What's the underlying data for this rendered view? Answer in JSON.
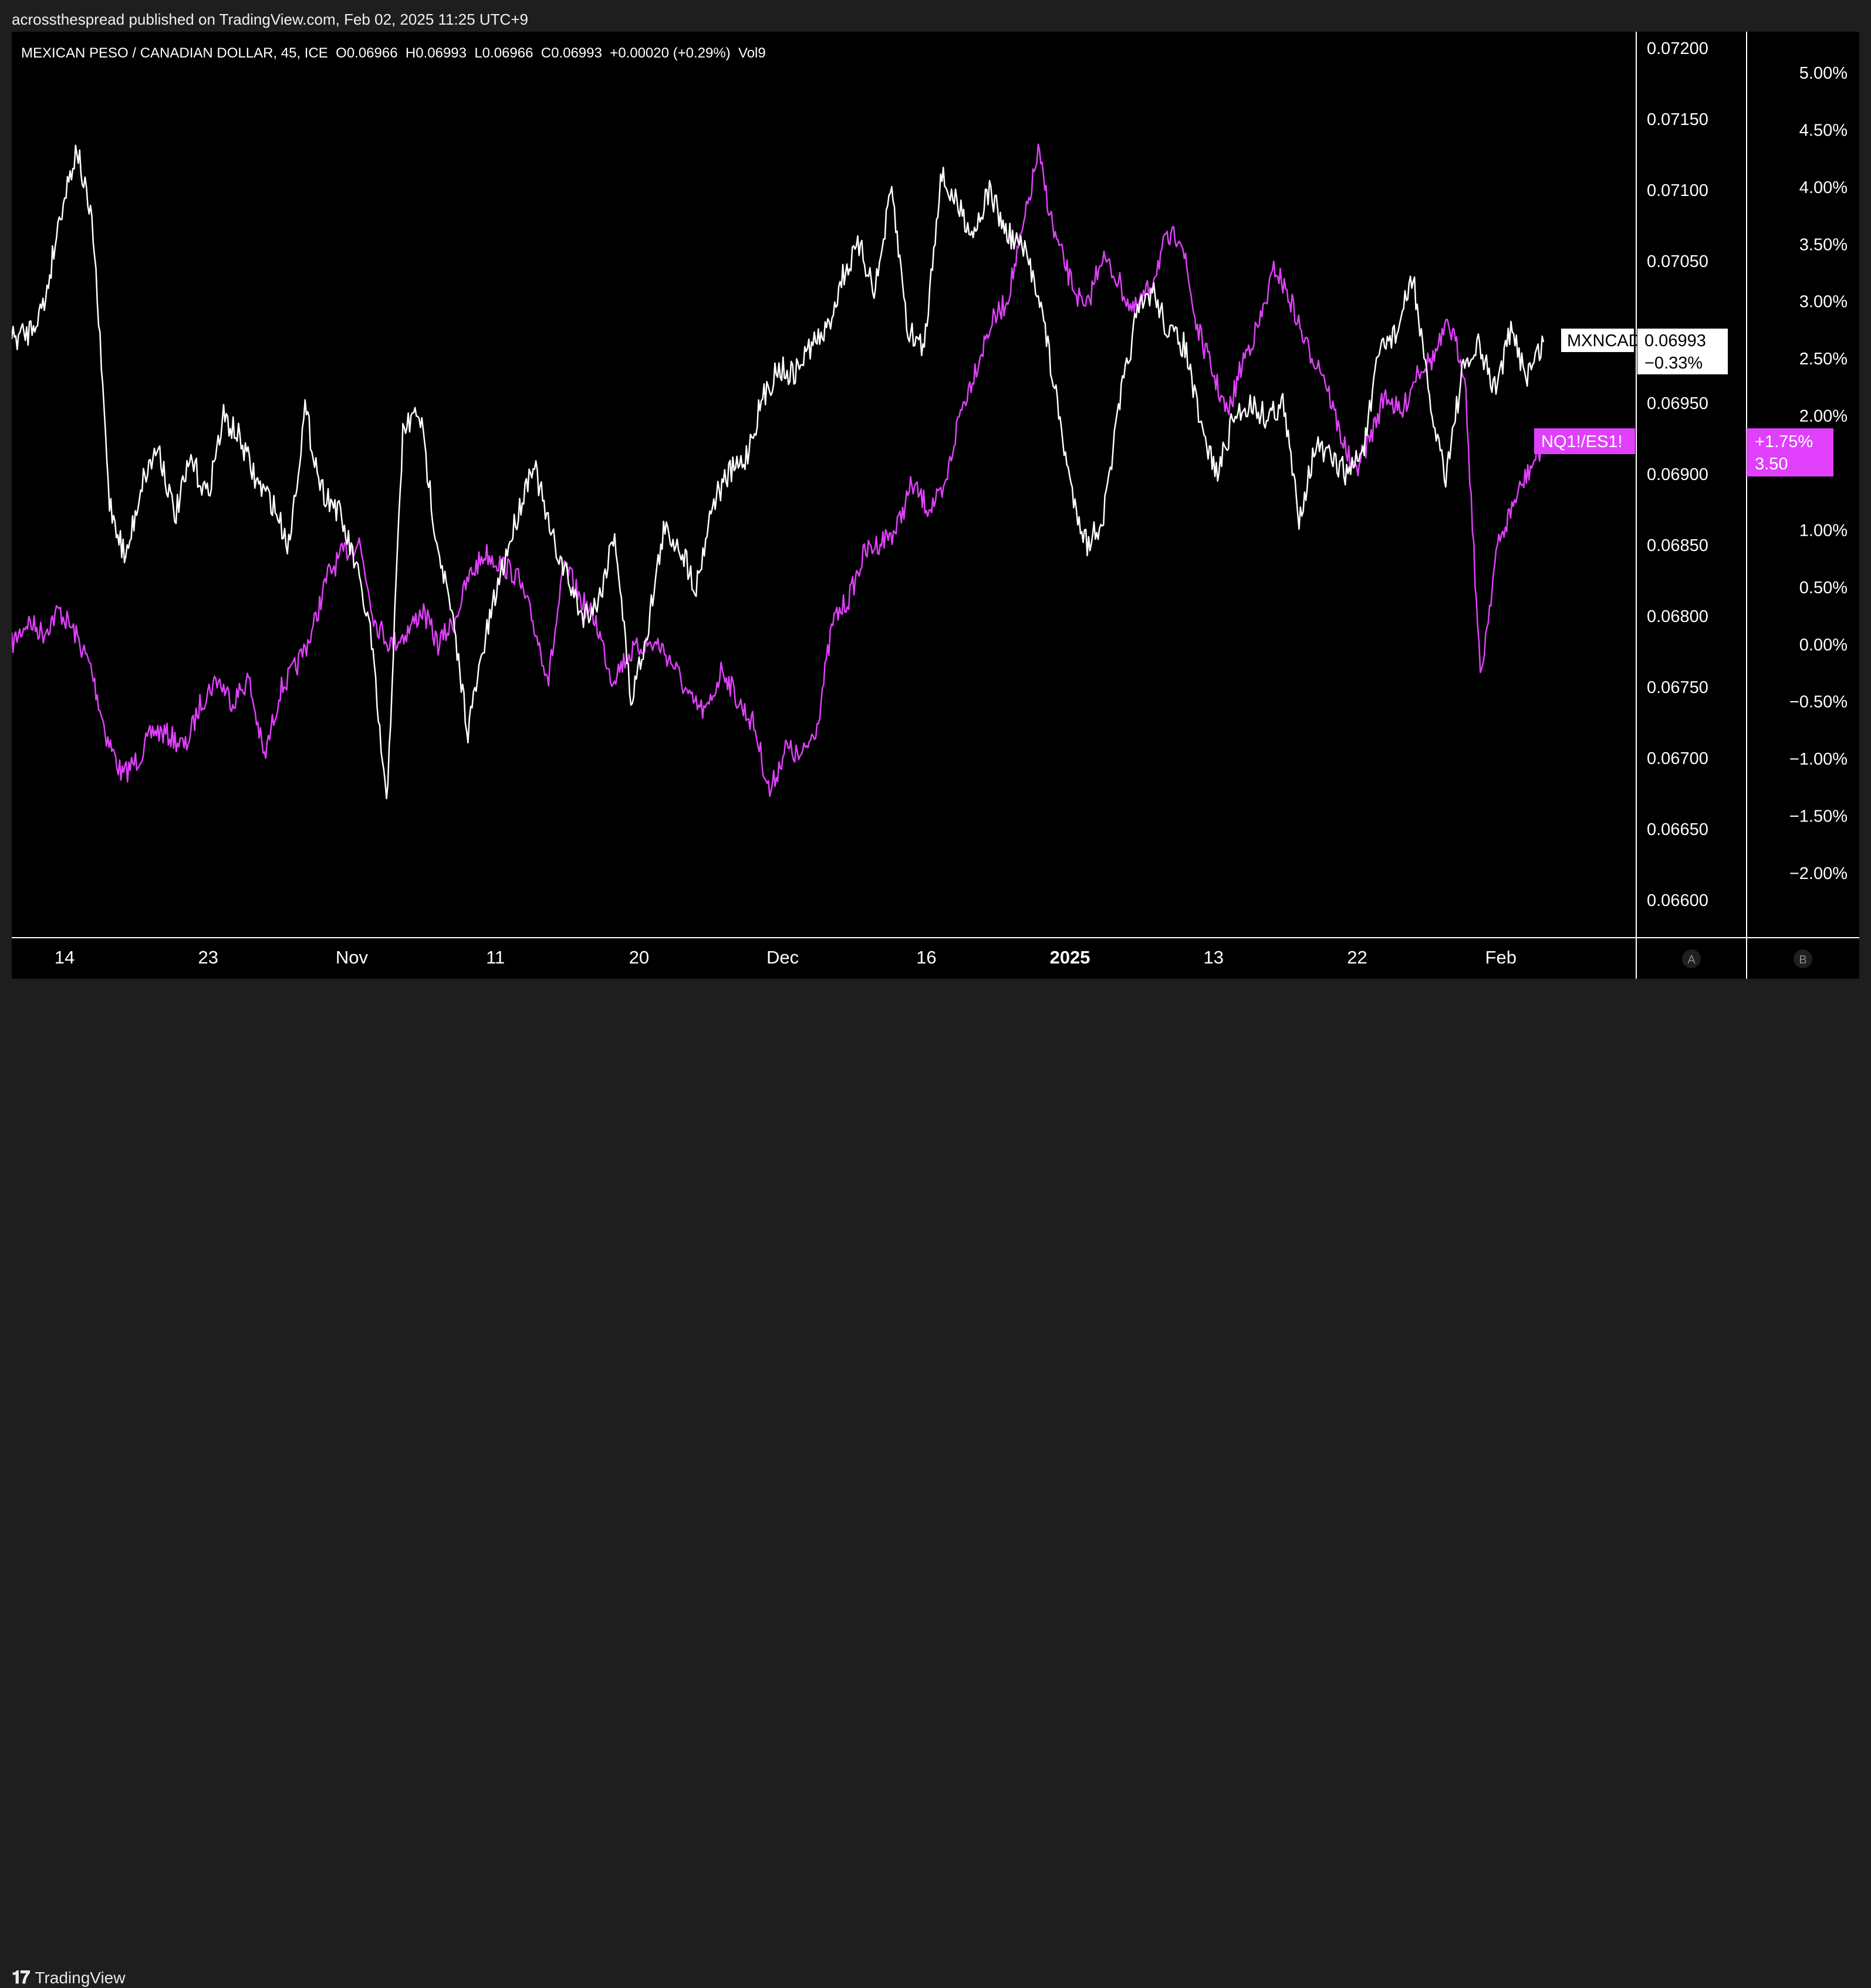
{
  "header": {
    "published_text": "acrossthespread published on TradingView.com, Feb 02, 2025 11:25 UTC+9"
  },
  "chart_data": {
    "type": "line",
    "legend_text": "MEXICAN PESO / CANADIAN DOLLAR, 45, ICE  O0.06966  H0.06993  L0.06966  C0.06993  +0.00020 (+0.29%)  Vol9",
    "x_tick_labels": [
      {
        "label": "14",
        "bold": false
      },
      {
        "label": "23",
        "bold": false
      },
      {
        "label": "Nov",
        "bold": false
      },
      {
        "label": "11",
        "bold": false
      },
      {
        "label": "20",
        "bold": false
      },
      {
        "label": "Dec",
        "bold": false
      },
      {
        "label": "16",
        "bold": false
      },
      {
        "label": "2025",
        "bold": true
      },
      {
        "label": "13",
        "bold": false
      },
      {
        "label": "22",
        "bold": false
      },
      {
        "label": "Feb",
        "bold": false
      }
    ],
    "price_axis": {
      "range": [
        0.066,
        0.072
      ],
      "tick_labels": [
        "0.07200",
        "0.07150",
        "0.07100",
        "0.07050",
        "0.06950",
        "0.06900",
        "0.06850",
        "0.06800",
        "0.06750",
        "0.06700",
        "0.06650",
        "0.06600"
      ]
    },
    "percent_axis": {
      "range": [
        -2.0,
        5.0
      ],
      "tick_labels": [
        "5.00%",
        "4.50%",
        "4.00%",
        "3.50%",
        "3.00%",
        "2.50%",
        "2.00%",
        "1.00%",
        "0.50%",
        "0.00%",
        "−0.50%",
        "−1.00%",
        "−1.50%",
        "−2.00%"
      ]
    },
    "axis_buttons": {
      "a": "A",
      "b": "B"
    },
    "series": [
      {
        "name": "MXNCAD",
        "color": "#ffffff",
        "axis": "price",
        "last_value_label": "0.06993",
        "last_change_label": "−0.33%",
        "values": [
          0.06995,
          0.07,
          0.0702,
          0.07085,
          0.0713,
          0.0707,
          0.0688,
          0.0684,
          0.06895,
          0.0692,
          0.0687,
          0.0691,
          0.06885,
          0.0694,
          0.06925,
          0.06895,
          0.0688,
          0.0685,
          0.06945,
          0.0689,
          0.06875,
          0.0684,
          0.0679,
          0.06665,
          0.0693,
          0.06945,
          0.0686,
          0.068,
          0.0672,
          0.0678,
          0.0683,
          0.0687,
          0.0691,
          0.0686,
          0.0683,
          0.068,
          0.0681,
          0.0686,
          0.0674,
          0.0679,
          0.0686,
          0.0685,
          0.0682,
          0.0688,
          0.069,
          0.0691,
          0.0695,
          0.06975,
          0.0697,
          0.0699,
          0.07,
          0.0704,
          0.0706,
          0.0703,
          0.071,
          0.07,
          0.0699,
          0.0711,
          0.0709,
          0.0707,
          0.071,
          0.0707,
          0.0706,
          0.0703,
          0.0696,
          0.0689,
          0.0685,
          0.0687,
          0.0695,
          0.0701,
          0.0703,
          0.07,
          0.0699,
          0.0693,
          0.069,
          0.0694,
          0.0695,
          0.0694,
          0.0695,
          0.0687,
          0.0692,
          0.0691,
          0.069,
          0.0692,
          0.0699,
          0.07,
          0.0704,
          0.0695,
          0.069,
          0.0697,
          0.0699,
          0.0696,
          0.07,
          0.0697,
          0.06993
        ]
      },
      {
        "name": "NQ1!/ES1!",
        "color": "#e040fb",
        "axis": "percent",
        "last_value_label": "+1.75%",
        "last_change_label": "3.50",
        "values": [
          0.0,
          0.2,
          0.1,
          0.3,
          0.1,
          -0.2,
          -0.8,
          -1.15,
          -1.0,
          -0.75,
          -0.8,
          -0.9,
          -0.5,
          -0.3,
          -0.5,
          -0.3,
          -1.0,
          -0.4,
          -0.2,
          0.1,
          0.6,
          0.8,
          0.9,
          0.2,
          0.0,
          0.1,
          0.3,
          0.0,
          0.2,
          0.6,
          0.8,
          0.7,
          0.6,
          0.2,
          -0.3,
          0.7,
          0.4,
          0.2,
          -0.3,
          -0.1,
          0.0,
          0.0,
          -0.2,
          -0.5,
          -0.6,
          -0.2,
          -0.5,
          -0.7,
          -1.3,
          -0.9,
          -1.0,
          -0.7,
          0.2,
          0.4,
          0.8,
          0.9,
          1.0,
          1.4,
          1.2,
          1.3,
          2.0,
          2.4,
          2.8,
          3.0,
          3.6,
          4.3,
          3.6,
          3.2,
          2.9,
          3.4,
          3.2,
          2.9,
          3.1,
          3.5,
          3.6,
          2.8,
          2.4,
          2.0,
          2.5,
          2.8,
          3.3,
          3.0,
          2.6,
          2.4,
          1.9,
          1.5,
          1.8,
          2.2,
          2.0,
          2.4,
          2.5,
          2.8,
          2.4,
          -0.3,
          0.8,
          1.2,
          1.5,
          1.75
        ]
      }
    ]
  },
  "footer": {
    "logo_text": "TradingView"
  }
}
